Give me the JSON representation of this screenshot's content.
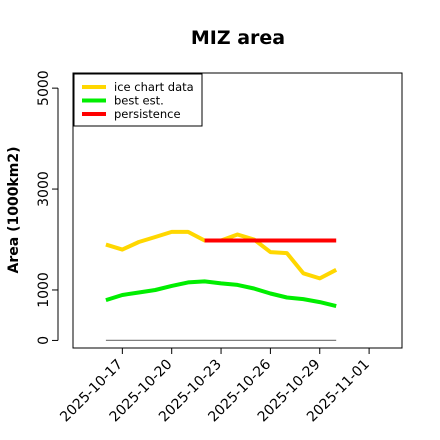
{
  "chart_data": {
    "type": "line",
    "title": "MIZ area",
    "xlabel": "",
    "ylabel": "Area (1000km2)",
    "x_ticks": [
      "2025-10-17",
      "2025-10-20",
      "2025-10-23",
      "2025-10-26",
      "2025-10-29",
      "2025-11-01"
    ],
    "y_ticks": [
      0,
      1000,
      3000,
      5000
    ],
    "xlim": [
      "2025-10-14",
      "2025-11-03"
    ],
    "ylim": [
      -150,
      5300
    ],
    "grid": false,
    "legend_position": "top-left",
    "baseline": {
      "x": [
        "2025-10-16",
        "2025-10-30"
      ],
      "y": [
        0,
        0
      ],
      "color": "#7f7f7f"
    },
    "series": [
      {
        "name": "ice chart data",
        "color": "#ffd700",
        "x": [
          "2025-10-16",
          "2025-10-17",
          "2025-10-18",
          "2025-10-19",
          "2025-10-20",
          "2025-10-21",
          "2025-10-22",
          "2025-10-23",
          "2025-10-24",
          "2025-10-25",
          "2025-10-26",
          "2025-10-27",
          "2025-10-28",
          "2025-10-29",
          "2025-10-30"
        ],
        "y": [
          1900,
          1800,
          1950,
          2050,
          2150,
          2150,
          1980,
          1980,
          2100,
          2000,
          1750,
          1730,
          1330,
          1230,
          1400
        ]
      },
      {
        "name": "best est.",
        "color": "#00ee00",
        "x": [
          "2025-10-16",
          "2025-10-17",
          "2025-10-18",
          "2025-10-19",
          "2025-10-20",
          "2025-10-21",
          "2025-10-22",
          "2025-10-23",
          "2025-10-24",
          "2025-10-25",
          "2025-10-26",
          "2025-10-27",
          "2025-10-28",
          "2025-10-29",
          "2025-10-30"
        ],
        "y": [
          800,
          900,
          950,
          1000,
          1080,
          1150,
          1170,
          1130,
          1100,
          1030,
          930,
          850,
          820,
          760,
          680
        ]
      },
      {
        "name": "persistence",
        "color": "#ff0000",
        "x": [
          "2025-10-22",
          "2025-10-30"
        ],
        "y": [
          1980,
          1980
        ]
      }
    ]
  }
}
